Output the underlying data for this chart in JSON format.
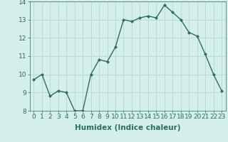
{
  "x": [
    0,
    1,
    2,
    3,
    4,
    5,
    6,
    7,
    8,
    9,
    10,
    11,
    12,
    13,
    14,
    15,
    16,
    17,
    18,
    19,
    20,
    21,
    22,
    23
  ],
  "y": [
    9.7,
    10.0,
    8.8,
    9.1,
    9.0,
    8.0,
    8.0,
    10.0,
    10.8,
    10.7,
    11.5,
    13.0,
    12.9,
    13.1,
    13.2,
    13.1,
    13.8,
    13.4,
    13.0,
    12.3,
    12.1,
    11.1,
    10.0,
    9.1
  ],
  "xlabel": "Humidex (Indice chaleur)",
  "ylim": [
    8,
    14
  ],
  "xlim_min": -0.5,
  "xlim_max": 23.5,
  "yticks": [
    8,
    9,
    10,
    11,
    12,
    13,
    14
  ],
  "xticks": [
    0,
    1,
    2,
    3,
    4,
    5,
    6,
    7,
    8,
    9,
    10,
    11,
    12,
    13,
    14,
    15,
    16,
    17,
    18,
    19,
    20,
    21,
    22,
    23
  ],
  "line_color": "#2a6e63",
  "bg_color": "#d4eeec",
  "grid_color": "#b8d8d5",
  "marker": "D",
  "marker_size": 2.0,
  "line_width": 1.0,
  "xlabel_fontsize": 7.5,
  "tick_fontsize": 6.5,
  "xtick_labels": [
    "0",
    "1",
    "2",
    "3",
    "4",
    "5",
    "6",
    "7",
    "8",
    "9",
    "10",
    "11",
    "12",
    "13",
    "14",
    "15",
    "16",
    "17",
    "18",
    "19",
    "20",
    "21",
    "22",
    "23"
  ]
}
